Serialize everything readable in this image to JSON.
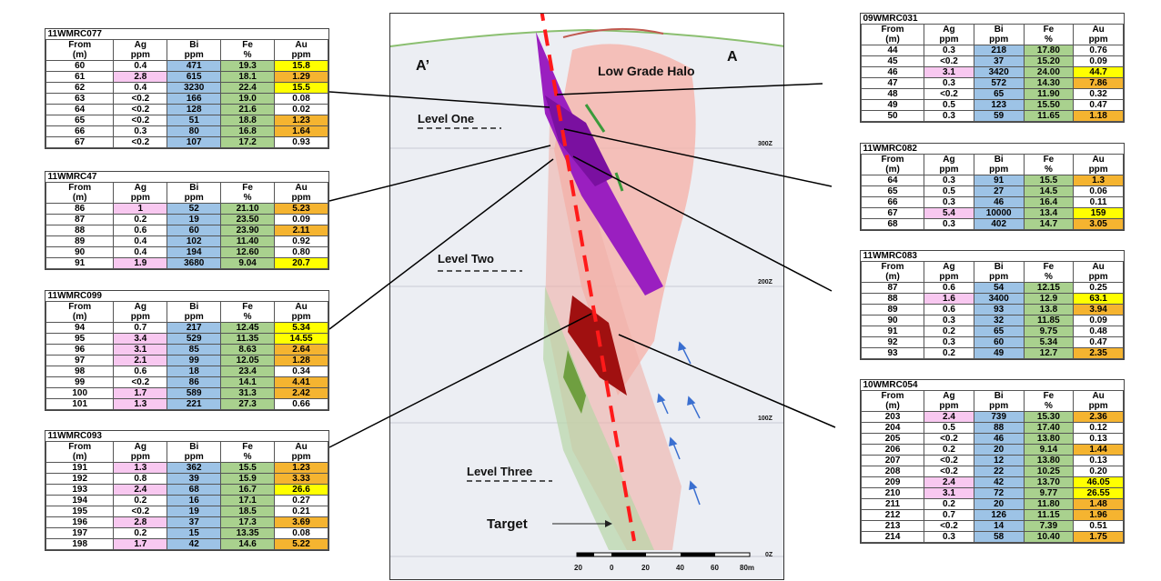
{
  "section": {
    "label_left": "A’",
    "label_right": "A",
    "halo": "Low Grade Halo",
    "levels": [
      "Level One",
      "Level Two",
      "Level Three"
    ],
    "target": "Target",
    "rl_labels": [
      "300Z",
      "200Z",
      "100Z",
      "0Z"
    ],
    "scale_labels": [
      "20",
      "0",
      "20",
      "40",
      "60",
      "80m"
    ]
  },
  "colors": {
    "ag": "#f8c8f0",
    "bi": "#9dc3e6",
    "fe": "#a9d18e",
    "au_high": "#ffff00",
    "au_mid": "#f5b430",
    "fault": "#ff1a1a",
    "core": "#9a1fc0",
    "halo": "#f4a9a0"
  },
  "tables": [
    {
      "id": "11WMRC077",
      "h1": [
        "From",
        "Ag",
        "Bi",
        "Fe",
        "Au"
      ],
      "h2": [
        "(m)",
        "ppm",
        "ppm",
        "%",
        "ppm"
      ],
      "rows": [
        [
          "60",
          "0.4",
          "471",
          "19.3",
          "15.8"
        ],
        [
          "61",
          "2.8",
          "615",
          "18.1",
          "1.29"
        ],
        [
          "62",
          "0.4",
          "3230",
          "22.4",
          "15.5"
        ],
        [
          "63",
          "<0.2",
          "166",
          "19.0",
          "0.08"
        ],
        [
          "64",
          "<0.2",
          "128",
          "21.6",
          "0.02"
        ],
        [
          "65",
          "<0.2",
          "51",
          "18.8",
          "1.23"
        ],
        [
          "66",
          "0.3",
          "80",
          "16.8",
          "1.64"
        ],
        [
          "67",
          "<0.2",
          "107",
          "17.2",
          "0.93"
        ]
      ],
      "ag_hl": [
        1
      ],
      "au_hl": [
        "y",
        "o",
        "y",
        "",
        "",
        "o",
        "o",
        ""
      ]
    },
    {
      "id": "11WMRC47",
      "h1": [
        "From",
        "Ag",
        "Bi",
        "Fe",
        "Au"
      ],
      "h2": [
        "(m)",
        "ppm",
        "ppm",
        "%",
        "ppm"
      ],
      "rows": [
        [
          "86",
          "1",
          "52",
          "21.10",
          "5.23"
        ],
        [
          "87",
          "0.2",
          "19",
          "23.50",
          "0.09"
        ],
        [
          "88",
          "0.6",
          "60",
          "23.90",
          "2.11"
        ],
        [
          "89",
          "0.4",
          "102",
          "11.40",
          "0.92"
        ],
        [
          "90",
          "0.4",
          "194",
          "12.60",
          "0.80"
        ],
        [
          "91",
          "1.9",
          "3680",
          "9.04",
          "20.7"
        ]
      ],
      "ag_hl": [
        0,
        5
      ],
      "au_hl": [
        "o",
        "",
        "o",
        "",
        "",
        "y"
      ]
    },
    {
      "id": "11WMRC099",
      "h1": [
        "From",
        "Ag",
        "Bi",
        "Fe",
        "Au"
      ],
      "h2": [
        "(m)",
        "ppm",
        "ppm",
        "%",
        "ppm"
      ],
      "rows": [
        [
          "94",
          "0.7",
          "217",
          "12.45",
          "5.34"
        ],
        [
          "95",
          "3.4",
          "529",
          "11.35",
          "14.55"
        ],
        [
          "96",
          "3.1",
          "85",
          "8.63",
          "2.64"
        ],
        [
          "97",
          "2.1",
          "99",
          "12.05",
          "1.28"
        ],
        [
          "98",
          "0.6",
          "18",
          "23.4",
          "0.34"
        ],
        [
          "99",
          "<0.2",
          "86",
          "14.1",
          "4.41"
        ],
        [
          "100",
          "1.7",
          "589",
          "31.3",
          "2.42"
        ],
        [
          "101",
          "1.3",
          "221",
          "27.3",
          "0.66"
        ]
      ],
      "ag_hl": [
        1,
        2,
        3,
        6,
        7
      ],
      "au_hl": [
        "y",
        "y",
        "o",
        "o",
        "",
        "o",
        "o",
        ""
      ]
    },
    {
      "id": "11WMRC093",
      "h1": [
        "From",
        "Ag",
        "Bi",
        "Fe",
        "Au"
      ],
      "h2": [
        "(m)",
        "ppm",
        "ppm",
        "%",
        "ppm"
      ],
      "rows": [
        [
          "191",
          "1.3",
          "362",
          "15.5",
          "1.23"
        ],
        [
          "192",
          "0.8",
          "39",
          "15.9",
          "3.33"
        ],
        [
          "193",
          "2.4",
          "68",
          "16.7",
          "26.6"
        ],
        [
          "194",
          "0.2",
          "16",
          "17.1",
          "0.27"
        ],
        [
          "195",
          "<0.2",
          "19",
          "18.5",
          "0.21"
        ],
        [
          "196",
          "2.8",
          "37",
          "17.3",
          "3.69"
        ],
        [
          "197",
          "0.2",
          "15",
          "13.35",
          "0.08"
        ],
        [
          "198",
          "1.7",
          "42",
          "14.6",
          "5.22"
        ]
      ],
      "ag_hl": [
        0,
        2,
        5,
        7
      ],
      "au_hl": [
        "o",
        "o",
        "y",
        "",
        "",
        "o",
        "",
        "o"
      ]
    },
    {
      "id": "09WMRC031",
      "h1": [
        "From",
        "Ag",
        "Bi",
        "Fe",
        "Au"
      ],
      "h2": [
        "(m)",
        "ppm",
        "ppm",
        "%",
        "ppm"
      ],
      "rows": [
        [
          "44",
          "0.3",
          "218",
          "17.80",
          "0.76"
        ],
        [
          "45",
          "<0.2",
          "37",
          "15.20",
          "0.09"
        ],
        [
          "46",
          "3.1",
          "3420",
          "24.00",
          "44.7"
        ],
        [
          "47",
          "0.3",
          "572",
          "14.30",
          "7.86"
        ],
        [
          "48",
          "<0.2",
          "65",
          "11.90",
          "0.32"
        ],
        [
          "49",
          "0.5",
          "123",
          "15.50",
          "0.47"
        ],
        [
          "50",
          "0.3",
          "59",
          "11.65",
          "1.18"
        ]
      ],
      "ag_hl": [
        2
      ],
      "au_hl": [
        "",
        "",
        "y",
        "o",
        "",
        "",
        "o"
      ]
    },
    {
      "id": "11WMRC082",
      "h1": [
        "From",
        "Ag",
        "Bi",
        "Fe",
        "Au"
      ],
      "h2": [
        "(m)",
        "ppm",
        "ppm",
        "%",
        "ppm"
      ],
      "rows": [
        [
          "64",
          "0.3",
          "91",
          "15.5",
          "1.3"
        ],
        [
          "65",
          "0.5",
          "27",
          "14.5",
          "0.06"
        ],
        [
          "66",
          "0.3",
          "46",
          "16.4",
          "0.11"
        ],
        [
          "67",
          "5.4",
          "10000",
          "13.4",
          "159"
        ],
        [
          "68",
          "0.3",
          "402",
          "14.7",
          "3.05"
        ]
      ],
      "ag_hl": [
        3
      ],
      "au_hl": [
        "o",
        "",
        "",
        "y",
        "o"
      ]
    },
    {
      "id": "11WMRC083",
      "h1": [
        "From",
        "Ag",
        "Bi",
        "Fe",
        "Au"
      ],
      "h2": [
        "(m)",
        "ppm",
        "ppm",
        "%",
        "ppm"
      ],
      "rows": [
        [
          "87",
          "0.6",
          "54",
          "12.15",
          "0.25"
        ],
        [
          "88",
          "1.6",
          "3400",
          "12.9",
          "63.1"
        ],
        [
          "89",
          "0.6",
          "93",
          "13.8",
          "3.94"
        ],
        [
          "90",
          "0.3",
          "32",
          "11.85",
          "0.09"
        ],
        [
          "91",
          "0.2",
          "65",
          "9.75",
          "0.48"
        ],
        [
          "92",
          "0.3",
          "60",
          "5.34",
          "0.47"
        ],
        [
          "93",
          "0.2",
          "49",
          "12.7",
          "2.35"
        ]
      ],
      "ag_hl": [
        1
      ],
      "au_hl": [
        "",
        "y",
        "o",
        "",
        "",
        "",
        "o"
      ]
    },
    {
      "id": "10WMRC054",
      "h1": [
        "From",
        "Ag",
        "Bi",
        "Fe",
        "Au"
      ],
      "h2": [
        "(m)",
        "ppm",
        "ppm",
        "%",
        "ppm"
      ],
      "rows": [
        [
          "203",
          "2.4",
          "739",
          "15.30",
          "2.36"
        ],
        [
          "204",
          "0.5",
          "88",
          "17.40",
          "0.12"
        ],
        [
          "205",
          "<0.2",
          "46",
          "13.80",
          "0.13"
        ],
        [
          "206",
          "0.2",
          "20",
          "9.14",
          "1.44"
        ],
        [
          "207",
          "<0.2",
          "12",
          "13.80",
          "0.13"
        ],
        [
          "208",
          "<0.2",
          "22",
          "10.25",
          "0.20"
        ],
        [
          "209",
          "2.4",
          "42",
          "13.70",
          "46.05"
        ],
        [
          "210",
          "3.1",
          "72",
          "9.77",
          "26.55"
        ],
        [
          "211",
          "0.2",
          "20",
          "11.80",
          "1.48"
        ],
        [
          "212",
          "0.7",
          "126",
          "11.15",
          "1.96"
        ],
        [
          "213",
          "<0.2",
          "14",
          "7.39",
          "0.51"
        ],
        [
          "214",
          "0.3",
          "58",
          "10.40",
          "1.75"
        ]
      ],
      "ag_hl": [
        0,
        6,
        7
      ],
      "au_hl": [
        "o",
        "",
        "",
        "o",
        "",
        "",
        "y",
        "y",
        "o",
        "o",
        "",
        "o"
      ]
    }
  ]
}
